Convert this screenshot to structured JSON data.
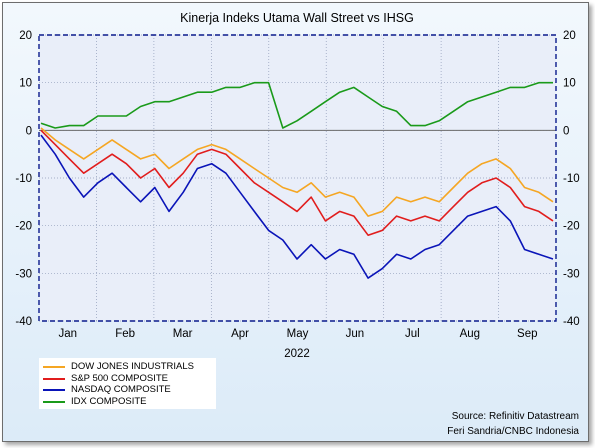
{
  "chart_data": {
    "type": "line",
    "title": "Kinerja Indeks Utama Wall Street vs IHSG",
    "xlabel": "2022",
    "ylabel": "",
    "x_ticks": [
      "Jan",
      "Feb",
      "Mar",
      "Apr",
      "May",
      "Jun",
      "Jul",
      "Aug",
      "Sep"
    ],
    "x": [
      "Jan 3",
      "Jan 10",
      "Jan 17",
      "Jan 24",
      "Jan 31",
      "Feb 7",
      "Feb 14",
      "Feb 21",
      "Feb 28",
      "Mar 7",
      "Mar 14",
      "Mar 21",
      "Mar 28",
      "Apr 4",
      "Apr 11",
      "Apr 18",
      "Apr 25",
      "May 2",
      "May 9",
      "May 16",
      "May 23",
      "May 30",
      "Jun 6",
      "Jun 13",
      "Jun 20",
      "Jun 27",
      "Jul 4",
      "Jul 11",
      "Jul 18",
      "Jul 25",
      "Aug 1",
      "Aug 8",
      "Aug 15",
      "Aug 22",
      "Aug 29",
      "Sep 5",
      "Sep 12"
    ],
    "ylim": [
      -40,
      20
    ],
    "y_ticks": [
      20,
      10,
      0,
      -10,
      -20,
      -30,
      -40
    ],
    "grid": true,
    "zero_line": true,
    "series": [
      {
        "name": "DOW JONES INDUSTRIALS",
        "color": "#f5a623",
        "values": [
          0.5,
          -2,
          -4,
          -6,
          -4,
          -2,
          -4,
          -6,
          -5,
          -8,
          -6,
          -4,
          -3,
          -4,
          -6,
          -8,
          -10,
          -12,
          -13,
          -11,
          -14,
          -13,
          -14,
          -18,
          -17,
          -14,
          -15,
          -14,
          -15,
          -12,
          -9,
          -7,
          -6,
          -8,
          -12,
          -13,
          -15
        ]
      },
      {
        "name": "S&P 500 COMPOSITE",
        "color": "#e11d1d",
        "values": [
          0,
          -3,
          -6,
          -9,
          -7,
          -5,
          -7,
          -10,
          -8,
          -12,
          -9,
          -5,
          -4,
          -5,
          -8,
          -11,
          -13,
          -15,
          -17,
          -14,
          -19,
          -17,
          -18,
          -22,
          -21,
          -18,
          -19,
          -18,
          -19,
          -16,
          -13,
          -11,
          -10,
          -12,
          -16,
          -17,
          -19
        ]
      },
      {
        "name": "NASDAQ COMPOSITE",
        "color": "#0a14b8",
        "values": [
          -1,
          -5,
          -10,
          -14,
          -11,
          -9,
          -12,
          -15,
          -12,
          -17,
          -13,
          -8,
          -7,
          -9,
          -13,
          -17,
          -21,
          -23,
          -27,
          -24,
          -27,
          -25,
          -26,
          -31,
          -29,
          -26,
          -27,
          -25,
          -24,
          -21,
          -18,
          -17,
          -16,
          -19,
          -25,
          -26,
          -27
        ]
      },
      {
        "name": "IDX COMPOSITE",
        "color": "#1a9a1a",
        "values": [
          1.5,
          0.5,
          1,
          1,
          3,
          3,
          3,
          5,
          6,
          6,
          7,
          8,
          8,
          9,
          9,
          10,
          10,
          0.5,
          2,
          4,
          6,
          8,
          9,
          7,
          5,
          4,
          1,
          1,
          2,
          4,
          6,
          7,
          8,
          9,
          9,
          10,
          10
        ]
      }
    ]
  },
  "source_line_1": "Source: Refinitiv Datastream",
  "source_line_2": "Feri Sandria/CNBC Indonesia"
}
